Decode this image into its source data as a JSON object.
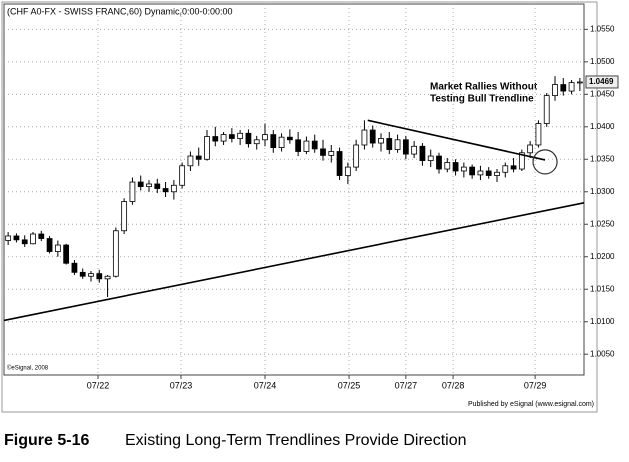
{
  "chart_data": {
    "type": "candlestick",
    "title": "(CHF A0-FX - SWISS FRANC,60) Dynamic,0:00-0:00:00",
    "source_note": "©eSignal, 2008",
    "publisher": "Published by eSignal (www.esignal.com)",
    "caption_number": "Figure 5-16",
    "caption_text": "Existing Long-Term Trendlines Provide Direction",
    "annotation": [
      "Market Rallies Without",
      "Testing Bull Trendline"
    ],
    "ylim": [
      1.0018,
      1.0589
    ],
    "yticks": [
      {
        "value": 1.005,
        "label": "1.0050"
      },
      {
        "value": 1.01,
        "label": "1.0100"
      },
      {
        "value": 1.015,
        "label": "1.0150"
      },
      {
        "value": 1.02,
        "label": "1.0200"
      },
      {
        "value": 1.025,
        "label": "1.0250"
      },
      {
        "value": 1.03,
        "label": "1.0300"
      },
      {
        "value": 1.035,
        "label": "1.0350"
      },
      {
        "value": 1.04,
        "label": "1.0400"
      },
      {
        "value": 1.045,
        "label": "1.0450"
      },
      {
        "value": 1.05,
        "label": "1.0500"
      },
      {
        "value": 1.055,
        "label": "1.0550"
      }
    ],
    "xlim": [
      -0.5,
      69.5
    ],
    "xticks": [
      {
        "value": 10.84,
        "label": "07/22"
      },
      {
        "value": 20.86,
        "label": "07/23"
      },
      {
        "value": 31.0,
        "label": "07/24"
      },
      {
        "value": 41.14,
        "label": "07/25"
      },
      {
        "value": 48.0,
        "label": "07/27"
      },
      {
        "value": 53.7,
        "label": "07/28"
      },
      {
        "value": 63.6,
        "label": "07/29"
      }
    ],
    "last_price": {
      "value": 1.0469,
      "label": "1.0469"
    },
    "grid": true,
    "color": "#000000",
    "ohlc": [
      [
        1.0225,
        1.0238,
        1.0218,
        1.0232
      ],
      [
        1.0232,
        1.0236,
        1.0222,
        1.0226
      ],
      [
        1.0226,
        1.0233,
        1.0215,
        1.022
      ],
      [
        1.022,
        1.0238,
        1.0219,
        1.0235
      ],
      [
        1.0235,
        1.024,
        1.0224,
        1.0228
      ],
      [
        1.0228,
        1.0232,
        1.0205,
        1.0208
      ],
      [
        1.0208,
        1.0225,
        1.02,
        1.0218
      ],
      [
        1.0218,
        1.022,
        1.0188,
        1.019
      ],
      [
        1.019,
        1.0195,
        1.0172,
        1.0176
      ],
      [
        1.0176,
        1.0182,
        1.0166,
        1.017
      ],
      [
        1.017,
        1.0178,
        1.0162,
        1.0174
      ],
      [
        1.0174,
        1.018,
        1.016,
        1.0166
      ],
      [
        1.0166,
        1.0172,
        1.0138,
        1.017
      ],
      [
        1.017,
        1.0245,
        1.0168,
        1.024
      ],
      [
        1.024,
        1.029,
        1.0235,
        1.0285
      ],
      [
        1.0285,
        1.0322,
        1.028,
        1.0315
      ],
      [
        1.0315,
        1.0325,
        1.0302,
        1.0308
      ],
      [
        1.0308,
        1.0318,
        1.03,
        1.0312
      ],
      [
        1.0312,
        1.032,
        1.0298,
        1.0305
      ],
      [
        1.0305,
        1.0315,
        1.0292,
        1.03
      ],
      [
        1.03,
        1.0318,
        1.0288,
        1.031
      ],
      [
        1.031,
        1.0345,
        1.0305,
        1.034
      ],
      [
        1.034,
        1.0362,
        1.0332,
        1.0355
      ],
      [
        1.0355,
        1.0368,
        1.034,
        1.035
      ],
      [
        1.035,
        1.0395,
        1.0348,
        1.0385
      ],
      [
        1.0385,
        1.04,
        1.037,
        1.0378
      ],
      [
        1.0378,
        1.0392,
        1.0372,
        1.0388
      ],
      [
        1.0388,
        1.0398,
        1.0376,
        1.0382
      ],
      [
        1.0382,
        1.0395,
        1.0372,
        1.039
      ],
      [
        1.039,
        1.0396,
        1.0368,
        1.0374
      ],
      [
        1.0374,
        1.0386,
        1.0365,
        1.038
      ],
      [
        1.038,
        1.0405,
        1.037,
        1.0388
      ],
      [
        1.0388,
        1.0395,
        1.036,
        1.0368
      ],
      [
        1.0368,
        1.039,
        1.0362,
        1.0384
      ],
      [
        1.0384,
        1.0396,
        1.0374,
        1.038
      ],
      [
        1.038,
        1.0392,
        1.0355,
        1.0362
      ],
      [
        1.0362,
        1.0385,
        1.0358,
        1.0378
      ],
      [
        1.0378,
        1.0388,
        1.036,
        1.0366
      ],
      [
        1.0366,
        1.038,
        1.0348,
        1.0356
      ],
      [
        1.0356,
        1.0372,
        1.0345,
        1.0362
      ],
      [
        1.0362,
        1.0368,
        1.0318,
        1.0325
      ],
      [
        1.0325,
        1.0345,
        1.0312,
        1.0338
      ],
      [
        1.0338,
        1.038,
        1.0332,
        1.0372
      ],
      [
        1.0372,
        1.041,
        1.0365,
        1.0395
      ],
      [
        1.0395,
        1.0402,
        1.0368,
        1.0375
      ],
      [
        1.0375,
        1.039,
        1.0362,
        1.0382
      ],
      [
        1.0382,
        1.0392,
        1.0358,
        1.0365
      ],
      [
        1.0365,
        1.0388,
        1.036,
        1.038
      ],
      [
        1.038,
        1.0386,
        1.035,
        1.0358
      ],
      [
        1.0358,
        1.0378,
        1.0352,
        1.037
      ],
      [
        1.037,
        1.0375,
        1.034,
        1.0348
      ],
      [
        1.0348,
        1.0365,
        1.0338,
        1.0355
      ],
      [
        1.0355,
        1.036,
        1.0328,
        1.0335
      ],
      [
        1.0335,
        1.0352,
        1.033,
        1.0345
      ],
      [
        1.0345,
        1.035,
        1.0325,
        1.0332
      ],
      [
        1.0332,
        1.0345,
        1.0322,
        1.0338
      ],
      [
        1.0338,
        1.0342,
        1.032,
        1.0326
      ],
      [
        1.0326,
        1.034,
        1.0318,
        1.0332
      ],
      [
        1.0332,
        1.0338,
        1.032,
        1.0325
      ],
      [
        1.0325,
        1.0335,
        1.0315,
        1.033
      ],
      [
        1.033,
        1.0345,
        1.0322,
        1.034
      ],
      [
        1.034,
        1.0352,
        1.033,
        1.0335
      ],
      [
        1.0335,
        1.0365,
        1.0332,
        1.036
      ],
      [
        1.036,
        1.0378,
        1.0352,
        1.0372
      ],
      [
        1.0372,
        1.041,
        1.0368,
        1.0405
      ],
      [
        1.0405,
        1.0452,
        1.04,
        1.0448
      ],
      [
        1.0448,
        1.0478,
        1.044,
        1.0465
      ],
      [
        1.0465,
        1.0475,
        1.0448,
        1.0455
      ],
      [
        1.0455,
        1.0472,
        1.045,
        1.0468
      ],
      [
        1.0468,
        1.0475,
        1.0455,
        1.0469
      ]
    ],
    "trendlines": [
      {
        "x": [
          -0.5,
          69.5
        ],
        "y": [
          1.0102,
          1.0283
        ]
      },
      {
        "x": [
          43.4,
          64.8
        ],
        "y": [
          1.041,
          1.0349
        ]
      }
    ],
    "highlight": {
      "x": 64.8,
      "y": 1.0346
    }
  }
}
